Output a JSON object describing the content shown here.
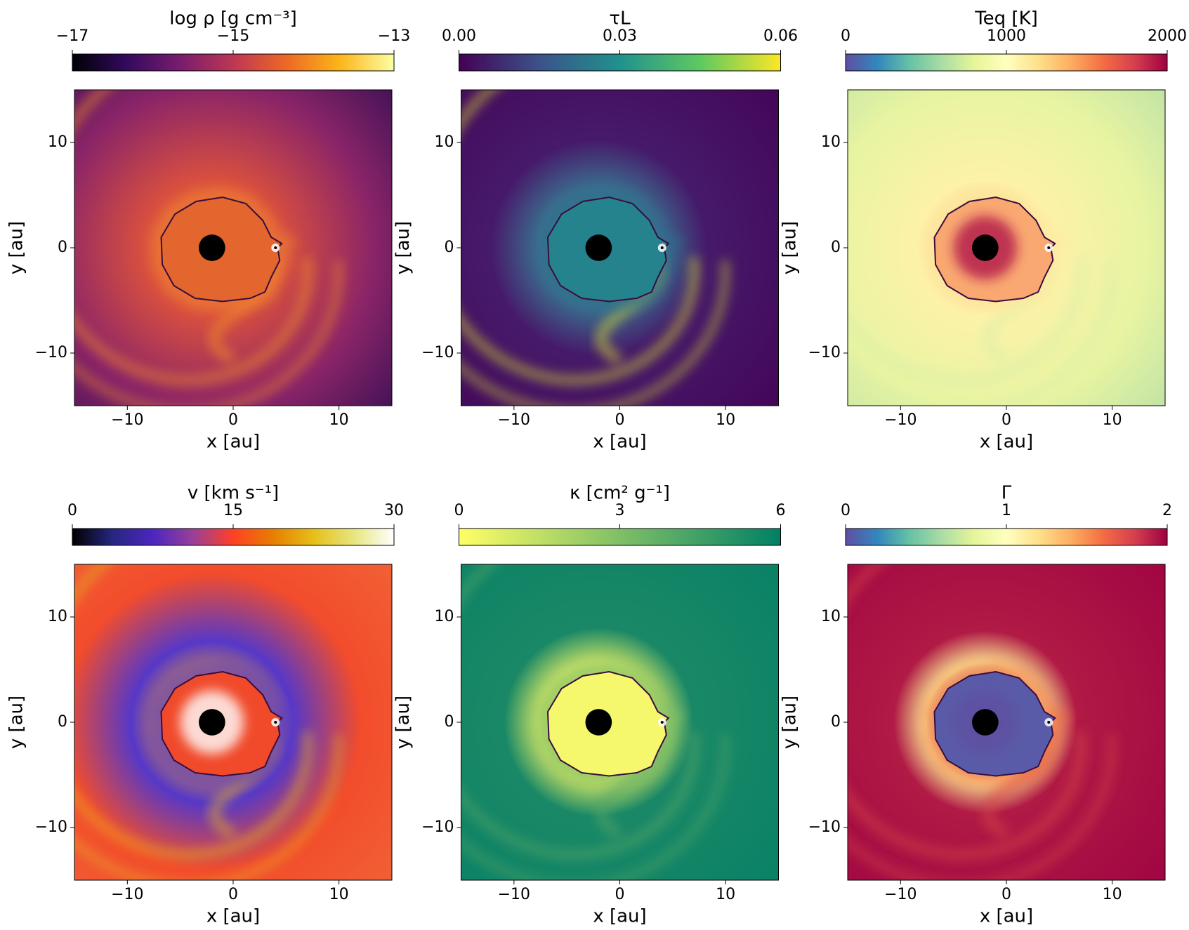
{
  "chart_data": [
    {
      "type": "heatmap",
      "title": "log ρ [g cm⁻³]",
      "colormap": "inferno",
      "clim": [
        -17,
        -13
      ],
      "cticks": [
        {
          "value": -17,
          "label": "−17"
        },
        {
          "value": -15,
          "label": "−15"
        },
        {
          "value": -13,
          "label": "−13"
        }
      ],
      "xlabel": "x [au]",
      "ylabel": "y [au]",
      "xlim": [
        -15,
        15
      ],
      "ylim": [
        -15,
        15
      ],
      "xticks": [
        {
          "value": -10,
          "label": "−10"
        },
        0,
        10
      ],
      "yticks": [
        {
          "value": -10,
          "label": "−10"
        },
        0,
        10
      ]
    },
    {
      "type": "heatmap",
      "title": "τL",
      "colormap": "viridis",
      "clim": [
        0,
        0.06
      ],
      "cticks": [
        {
          "value": 0,
          "label": "0.00"
        },
        {
          "value": 0.03,
          "label": "0.03"
        },
        {
          "value": 0.06,
          "label": "0.06"
        }
      ],
      "xlabel": "x [au]",
      "ylabel": "y [au]",
      "xlim": [
        -15,
        15
      ],
      "ylim": [
        -15,
        15
      ],
      "xticks": [
        {
          "value": -10,
          "label": "−10"
        },
        0,
        10
      ],
      "yticks": [
        {
          "value": -10,
          "label": "−10"
        },
        0,
        10
      ]
    },
    {
      "type": "heatmap",
      "title": "Teq [K]",
      "colormap": "Spectral_r",
      "clim": [
        0,
        2000
      ],
      "cticks": [
        0,
        1000,
        2000
      ],
      "xlabel": "x [au]",
      "ylabel": "y [au]",
      "xlim": [
        -15,
        15
      ],
      "ylim": [
        -15,
        15
      ],
      "xticks": [
        {
          "value": -10,
          "label": "−10"
        },
        0,
        10
      ],
      "yticks": [
        {
          "value": -10,
          "label": "−10"
        },
        0,
        10
      ]
    },
    {
      "type": "heatmap",
      "title": "v [km s⁻¹]",
      "colormap": "CMRmap",
      "clim": [
        0,
        30
      ],
      "cticks": [
        0,
        15,
        30
      ],
      "xlabel": "x [au]",
      "ylabel": "y [au]",
      "xlim": [
        -15,
        15
      ],
      "ylim": [
        -15,
        15
      ],
      "xticks": [
        {
          "value": -10,
          "label": "−10"
        },
        0,
        10
      ],
      "yticks": [
        {
          "value": -10,
          "label": "−10"
        },
        0,
        10
      ]
    },
    {
      "type": "heatmap",
      "title": "κ [cm² g⁻¹]",
      "colormap": "summer_r",
      "clim": [
        0,
        6
      ],
      "cticks": [
        0,
        3,
        6
      ],
      "xlabel": "x [au]",
      "ylabel": "y [au]",
      "xlim": [
        -15,
        15
      ],
      "ylim": [
        -15,
        15
      ],
      "xticks": [
        {
          "value": -10,
          "label": "−10"
        },
        0,
        10
      ],
      "yticks": [
        {
          "value": -10,
          "label": "−10"
        },
        0,
        10
      ]
    },
    {
      "type": "heatmap",
      "title": "Γ",
      "colormap": "Spectral_r",
      "clim": [
        0,
        2
      ],
      "cticks": [
        0,
        1,
        2
      ],
      "xlabel": "x [au]",
      "ylabel": "y [au]",
      "xlim": [
        -15,
        15
      ],
      "ylim": [
        -15,
        15
      ],
      "xticks": [
        {
          "value": -10,
          "label": "−10"
        },
        0,
        10
      ],
      "yticks": [
        {
          "value": -10,
          "label": "−10"
        },
        0,
        10
      ]
    }
  ]
}
